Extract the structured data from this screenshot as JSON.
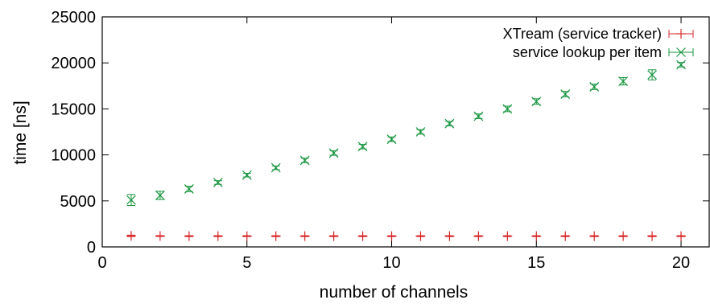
{
  "chart_data": {
    "type": "scatter",
    "title": "",
    "xlabel": "number of channels",
    "ylabel": "time [ns]",
    "xlim": [
      0,
      21
    ],
    "ylim": [
      0,
      25000
    ],
    "xticks": [
      0,
      5,
      10,
      15,
      20
    ],
    "yticks": [
      0,
      5000,
      10000,
      15000,
      20000,
      25000
    ],
    "grid": false,
    "legend_position": "top-right",
    "x": [
      1,
      2,
      3,
      4,
      5,
      6,
      7,
      8,
      9,
      10,
      11,
      12,
      13,
      14,
      15,
      16,
      17,
      18,
      19,
      20
    ],
    "series": [
      {
        "name": "XTream (service tracker)",
        "color": "#d62728",
        "marker": "plus",
        "values": [
          1200,
          1180,
          1170,
          1170,
          1170,
          1170,
          1170,
          1170,
          1170,
          1170,
          1170,
          1170,
          1170,
          1170,
          1170,
          1170,
          1170,
          1170,
          1170,
          1170
        ],
        "errors": [
          80,
          50,
          50,
          50,
          50,
          50,
          50,
          50,
          50,
          50,
          50,
          50,
          50,
          50,
          50,
          50,
          50,
          50,
          50,
          50
        ]
      },
      {
        "name": "service lookup per item",
        "color": "#1a9641",
        "marker": "x",
        "values": [
          5100,
          5600,
          6300,
          7000,
          7800,
          8600,
          9400,
          10200,
          10900,
          11700,
          12500,
          13400,
          14200,
          15000,
          15800,
          16600,
          17400,
          18000,
          18700,
          19800
        ],
        "errors": [
          600,
          450,
          300,
          200,
          200,
          200,
          250,
          250,
          250,
          250,
          250,
          250,
          250,
          300,
          300,
          300,
          300,
          400,
          550,
          250
        ]
      }
    ]
  }
}
